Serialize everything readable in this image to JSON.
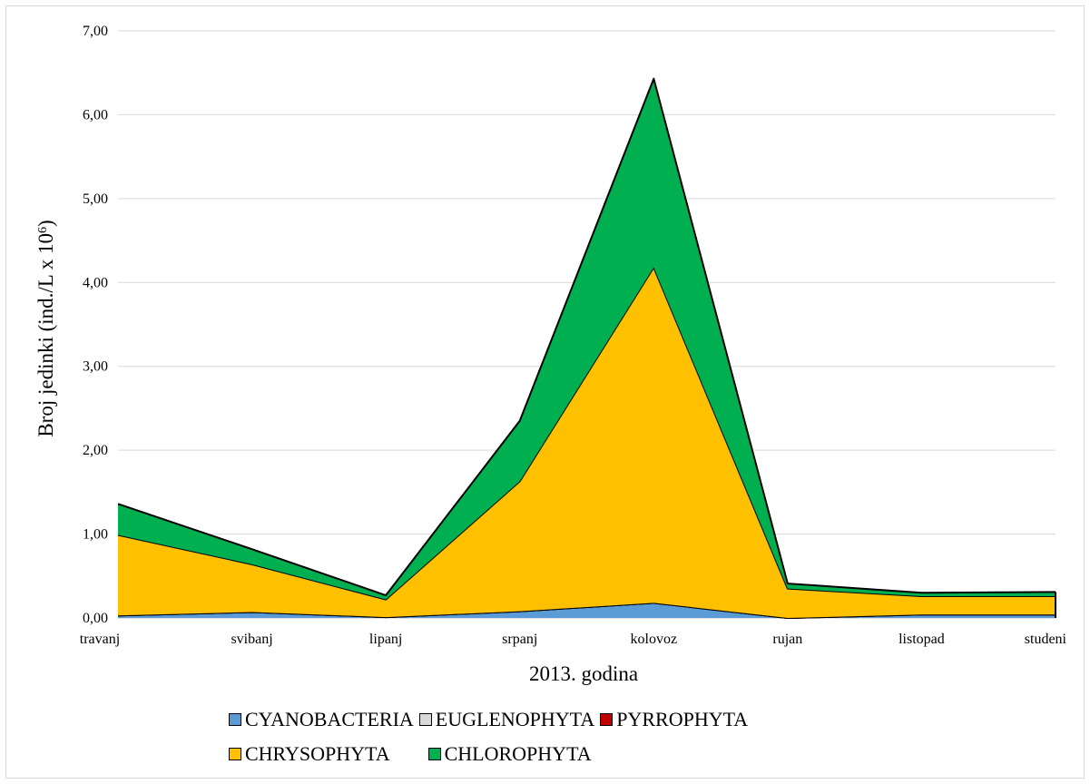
{
  "chart_data": {
    "type": "area",
    "stacked": true,
    "title": "",
    "xlabel": "2013. godina",
    "ylabel_main": "Broj jedinki (ind./L x 10",
    "ylabel_sup": "6",
    "ylabel_close": ")",
    "ylim": [
      0,
      7
    ],
    "ytick_labels": [
      "0,00",
      "1,00",
      "2,00",
      "3,00",
      "4,00",
      "5,00",
      "6,00",
      "7,00"
    ],
    "ytick_values": [
      0,
      1,
      2,
      3,
      4,
      5,
      6,
      7
    ],
    "grid": true,
    "legend_position": "bottom",
    "categories": [
      "travanj",
      "svibanj",
      "lipanj",
      "srpanj",
      "kolovoz",
      "rujan",
      "listopad",
      "studeni"
    ],
    "series": [
      {
        "name": "CYANOBACTERIA",
        "color": "#5b9bd5",
        "values": [
          0.03,
          0.07,
          0.01,
          0.08,
          0.18,
          0.0,
          0.04,
          0.04
        ]
      },
      {
        "name": "EUGLENOPHYTA",
        "color": "#d9d9d9",
        "values": [
          0.0,
          0.0,
          0.0,
          0.0,
          0.0,
          0.0,
          0.0,
          0.0
        ]
      },
      {
        "name": "PYRROPHYTA",
        "color": "#c00000",
        "values": [
          0.0,
          0.0,
          0.0,
          0.0,
          0.0,
          0.0,
          0.0,
          0.0
        ]
      },
      {
        "name": "CHRYSOPHYTA",
        "color": "#ffc000",
        "values": [
          0.96,
          0.57,
          0.21,
          1.55,
          4.0,
          0.35,
          0.22,
          0.22
        ]
      },
      {
        "name": "CHLOROPHYTA",
        "color": "#00b050",
        "values": [
          0.37,
          0.18,
          0.05,
          0.72,
          2.25,
          0.06,
          0.04,
          0.05
        ]
      }
    ]
  }
}
